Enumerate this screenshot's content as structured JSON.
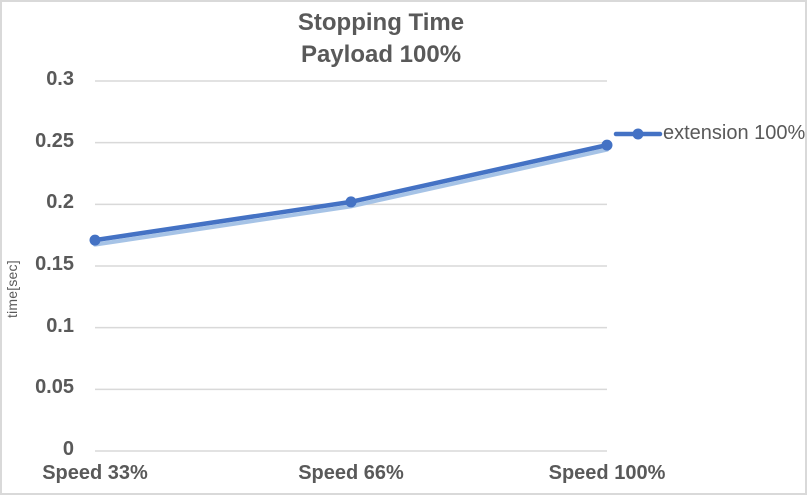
{
  "chart": {
    "title_line1": "Stopping Time",
    "title_line2": "Payload 100%",
    "y_axis_title": "time[sec]",
    "legend_label": "extension 100%"
  },
  "chart_data": {
    "type": "line",
    "title": "Stopping Time Payload 100%",
    "categories": [
      "Speed 33%",
      "Speed 66%",
      "Speed 100%"
    ],
    "series": [
      {
        "name": "extension 100%",
        "values": [
          0.171,
          0.202,
          0.248
        ]
      }
    ],
    "xlabel": "",
    "ylabel": "time[sec]",
    "ylim": [
      0,
      0.3
    ],
    "yticks": [
      0,
      0.05,
      0.1,
      0.15,
      0.2,
      0.25,
      0.3
    ],
    "ytick_labels": [
      "0",
      "0.05",
      "0.1",
      "0.15",
      "0.2",
      "0.25",
      "0.3"
    ],
    "grid": true,
    "legend_position": "right",
    "marker": "circle"
  },
  "colors": {
    "series_line": "#4472C4",
    "series_line_shadow": "#A6C3E6",
    "gridline": "#D9D9D9",
    "border": "#D9D9D9",
    "text": "#595959",
    "background": "#FFFFFF"
  }
}
